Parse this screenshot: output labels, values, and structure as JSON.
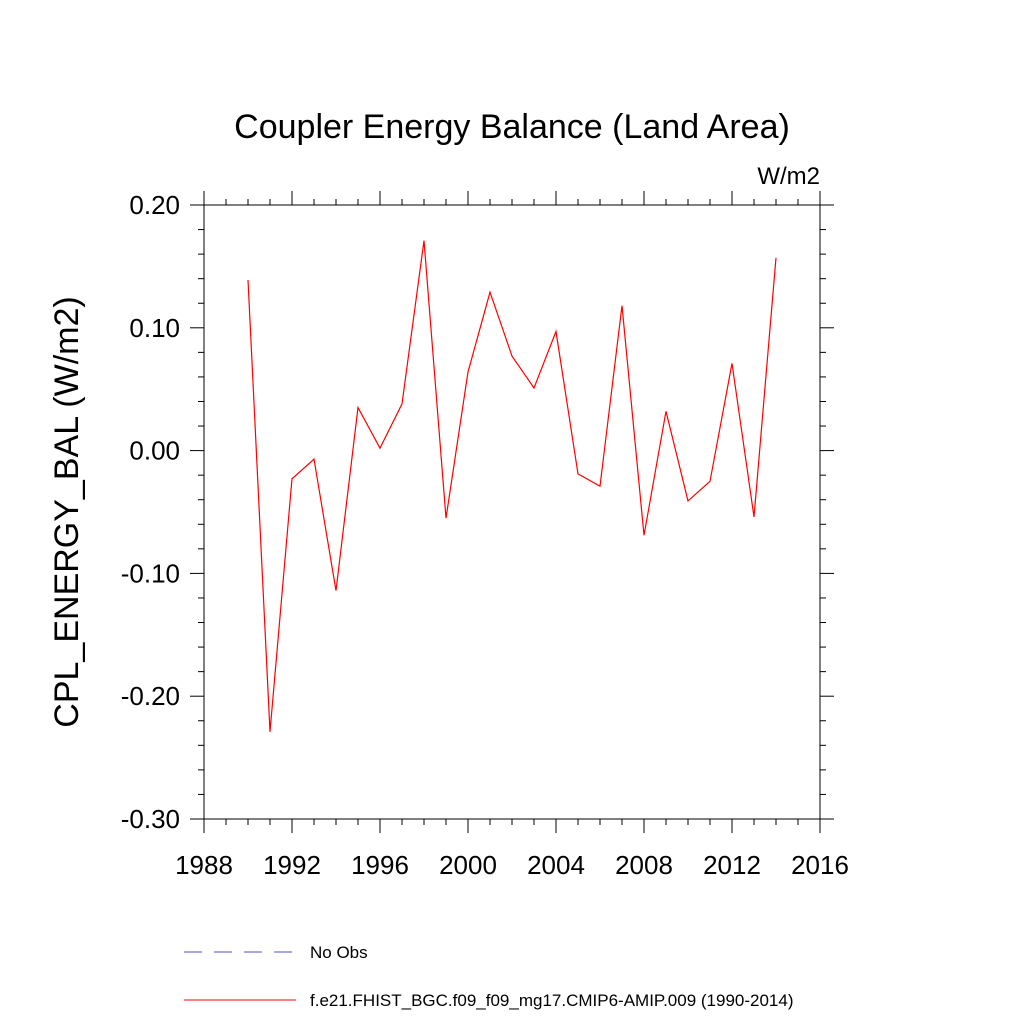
{
  "chart_data": {
    "type": "line",
    "title": "Coupler Energy Balance (Land Area)",
    "units": "W/m2",
    "ylabel": "CPL_ENERGY_BAL  (W/m2)",
    "xlabel": "",
    "xlim": [
      1988,
      2016
    ],
    "ylim": [
      -0.3,
      0.2
    ],
    "x_ticks": [
      1988,
      1992,
      1996,
      2000,
      2004,
      2008,
      2012,
      2016
    ],
    "x_tick_labels": [
      "1988",
      "1992",
      "1996",
      "2000",
      "2004",
      "2008",
      "2012",
      "2016"
    ],
    "y_ticks": [
      0.2,
      0.1,
      0.0,
      -0.1,
      -0.2,
      -0.3
    ],
    "y_tick_labels": [
      "0.20",
      "0.10",
      "0.00",
      "-0.10",
      "-0.20",
      "-0.30"
    ],
    "grid": false,
    "legend_position": "bottom",
    "series": [
      {
        "name": "No Obs",
        "color": "#5050c8",
        "style": "dashed",
        "x": [],
        "values": []
      },
      {
        "name": "f.e21.FHIST_BGC.f09_f09_mg17.CMIP6-AMIP.009 (1990-2014)",
        "color": "#ff0000",
        "style": "solid",
        "x": [
          1990,
          1991,
          1992,
          1993,
          1994,
          1995,
          1996,
          1997,
          1998,
          1999,
          2000,
          2001,
          2002,
          2003,
          2004,
          2005,
          2006,
          2007,
          2008,
          2009,
          2010,
          2011,
          2012,
          2013,
          2014
        ],
        "values": [
          0.139,
          -0.229,
          -0.023,
          -0.007,
          -0.114,
          0.035,
          0.002,
          0.038,
          0.171,
          -0.055,
          0.064,
          0.129,
          0.077,
          0.051,
          0.097,
          -0.019,
          -0.029,
          0.118,
          -0.069,
          0.032,
          -0.041,
          -0.025,
          0.071,
          -0.054,
          0.157
        ]
      }
    ]
  }
}
